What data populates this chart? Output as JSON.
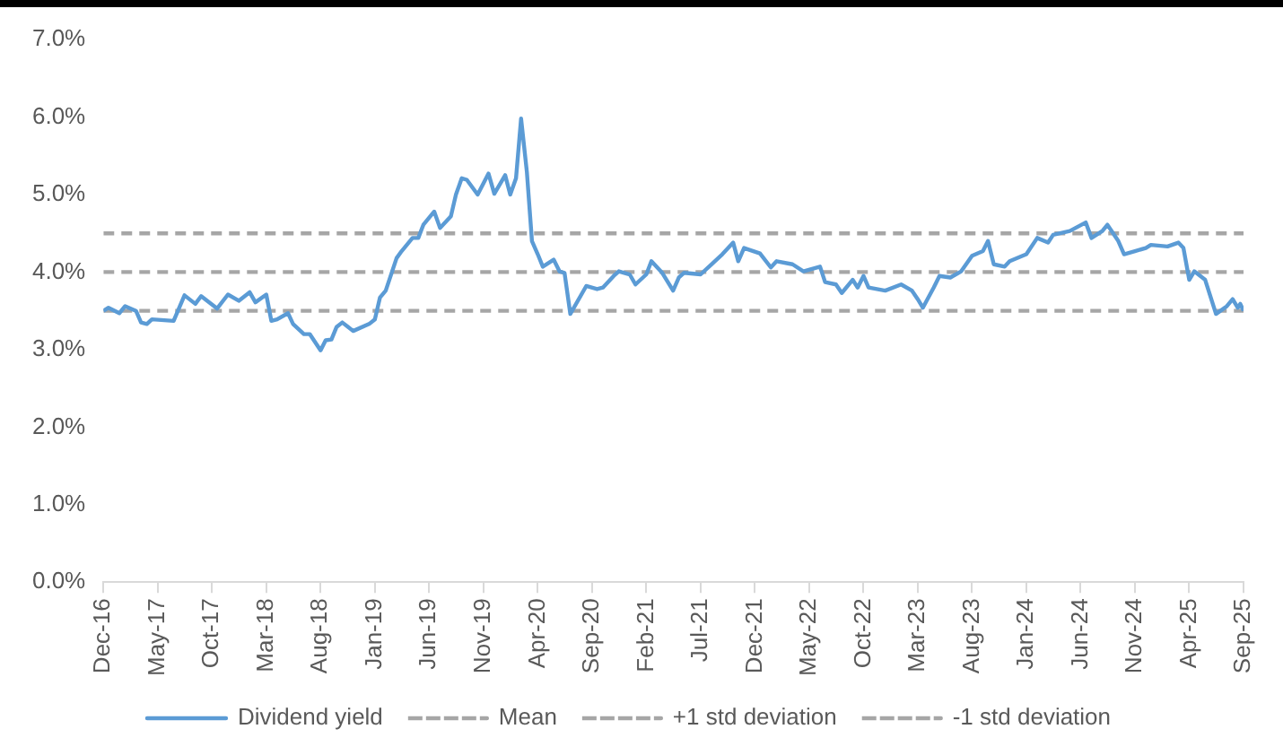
{
  "chart_data": {
    "type": "line",
    "legend": "bottom",
    "grid": false,
    "marker": "none",
    "xlim": [
      "2016-12",
      "2025-09"
    ],
    "xticks": [
      {
        "value": "2016-12",
        "label": "Dec-16"
      },
      {
        "value": "2017-05",
        "label": "May-17"
      },
      {
        "value": "2017-10",
        "label": "Oct-17"
      },
      {
        "value": "2018-03",
        "label": "Mar-18"
      },
      {
        "value": "2018-08",
        "label": "Aug-18"
      },
      {
        "value": "2019-01",
        "label": "Jan-19"
      },
      {
        "value": "2019-06",
        "label": "Jun-19"
      },
      {
        "value": "2019-11",
        "label": "Nov-19"
      },
      {
        "value": "2020-04",
        "label": "Apr-20"
      },
      {
        "value": "2020-09",
        "label": "Sep-20"
      },
      {
        "value": "2021-02",
        "label": "Feb-21"
      },
      {
        "value": "2021-07",
        "label": "Jul-21"
      },
      {
        "value": "2021-12",
        "label": "Dec-21"
      },
      {
        "value": "2022-05",
        "label": "May-22"
      },
      {
        "value": "2022-10",
        "label": "Oct-22"
      },
      {
        "value": "2023-03",
        "label": "Mar-23"
      },
      {
        "value": "2023-08",
        "label": "Aug-23"
      },
      {
        "value": "2024-01",
        "label": "Jan-24"
      },
      {
        "value": "2024-06",
        "label": "Jun-24"
      },
      {
        "value": "2024-11",
        "label": "Nov-24"
      },
      {
        "value": "2025-04",
        "label": "Apr-25"
      },
      {
        "value": "2025-09",
        "label": "Sep-25"
      }
    ],
    "ylim": [
      0,
      7
    ],
    "yticks": [
      {
        "value": 0,
        "label": "0.0%"
      },
      {
        "value": 1,
        "label": "1.0%"
      },
      {
        "value": 2,
        "label": "2.0%"
      },
      {
        "value": 3,
        "label": "3.0%"
      },
      {
        "value": 4,
        "label": "4.0%"
      },
      {
        "value": 5,
        "label": "5.0%"
      },
      {
        "value": 6,
        "label": "6.0%"
      },
      {
        "value": 7,
        "label": "7.0%"
      }
    ],
    "series": [
      {
        "name": "Dividend yield",
        "color": "#5b9bd5",
        "line_style": "solid",
        "x": [
          "2016-12-01",
          "2016-12-15",
          "2017-01-15",
          "2017-02-01",
          "2017-03-01",
          "2017-03-15",
          "2017-04-01",
          "2017-04-15",
          "2017-06-15",
          "2017-07-15",
          "2017-08-15",
          "2017-09-01",
          "2017-10-15",
          "2017-11-15",
          "2017-12-15",
          "2018-01-15",
          "2018-02-01",
          "2018-03-01",
          "2018-03-15",
          "2018-04-01",
          "2018-05-01",
          "2018-05-15",
          "2018-06-15",
          "2018-07-01",
          "2018-08-01",
          "2018-08-15",
          "2018-09-01",
          "2018-09-15",
          "2018-10-01",
          "2018-10-15",
          "2018-11-01",
          "2018-12-15",
          "2019-01-01",
          "2019-01-15",
          "2019-02-01",
          "2019-03-01",
          "2019-03-15",
          "2019-04-15",
          "2019-05-01",
          "2019-05-15",
          "2019-06-15",
          "2019-07-01",
          "2019-08-01",
          "2019-08-15",
          "2019-09-01",
          "2019-09-15",
          "2019-10-15",
          "2019-11-15",
          "2019-12-01",
          "2020-01-01",
          "2020-01-15",
          "2020-02-01",
          "2020-02-15",
          "2020-03-01",
          "2020-03-15",
          "2020-04-01",
          "2020-04-15",
          "2020-05-15",
          "2020-06-01",
          "2020-06-15",
          "2020-07-01",
          "2020-08-15",
          "2020-09-15",
          "2020-10-01",
          "2020-11-01",
          "2020-11-15",
          "2020-12-15",
          "2021-01-01",
          "2021-02-01",
          "2021-02-15",
          "2021-03-15",
          "2021-04-15",
          "2021-05-01",
          "2021-05-15",
          "2021-07-01",
          "2021-08-01",
          "2021-09-01",
          "2021-10-01",
          "2021-10-15",
          "2021-11-01",
          "2021-12-15",
          "2022-01-15",
          "2022-02-01",
          "2022-03-15",
          "2022-04-15",
          "2022-06-01",
          "2022-06-15",
          "2022-07-15",
          "2022-08-01",
          "2022-09-01",
          "2022-09-15",
          "2022-10-01",
          "2022-10-15",
          "2022-12-01",
          "2023-01-15",
          "2023-02-15",
          "2023-03-01",
          "2023-03-15",
          "2023-04-15",
          "2023-05-01",
          "2023-06-01",
          "2023-07-01",
          "2023-08-01",
          "2023-09-01",
          "2023-09-15",
          "2023-10-01",
          "2023-11-01",
          "2023-11-15",
          "2024-01-01",
          "2024-02-01",
          "2024-03-01",
          "2024-03-15",
          "2024-05-01",
          "2024-06-15",
          "2024-07-01",
          "2024-08-01",
          "2024-08-15",
          "2024-09-15",
          "2024-10-01",
          "2024-11-01",
          "2024-12-01",
          "2024-12-15",
          "2025-02-01",
          "2025-03-01",
          "2025-03-15",
          "2025-04-01",
          "2025-04-15",
          "2025-05-15",
          "2025-06-15",
          "2025-07-15",
          "2025-08-01",
          "2025-08-15",
          "2025-08-22",
          "2025-09-01"
        ],
        "values": [
          3.5,
          3.54,
          3.47,
          3.56,
          3.5,
          3.35,
          3.33,
          3.39,
          3.37,
          3.7,
          3.59,
          3.69,
          3.53,
          3.71,
          3.63,
          3.74,
          3.61,
          3.71,
          3.37,
          3.39,
          3.47,
          3.33,
          3.2,
          3.2,
          2.99,
          3.12,
          3.13,
          3.29,
          3.35,
          3.3,
          3.24,
          3.33,
          3.39,
          3.67,
          3.76,
          4.18,
          4.27,
          4.44,
          4.44,
          4.61,
          4.78,
          4.57,
          4.72,
          5.0,
          5.21,
          5.19,
          5.0,
          5.27,
          5.01,
          5.25,
          5.0,
          5.21,
          5.98,
          5.29,
          4.4,
          4.23,
          4.07,
          4.16,
          4.01,
          3.99,
          3.46,
          3.82,
          3.78,
          3.8,
          3.95,
          4.01,
          3.97,
          3.84,
          3.97,
          4.14,
          3.99,
          3.76,
          3.93,
          3.99,
          3.97,
          4.1,
          4.23,
          4.38,
          4.14,
          4.31,
          4.24,
          4.06,
          4.14,
          4.1,
          4.01,
          4.07,
          3.87,
          3.84,
          3.73,
          3.9,
          3.8,
          3.95,
          3.8,
          3.76,
          3.84,
          3.76,
          3.65,
          3.54,
          3.8,
          3.95,
          3.93,
          4.01,
          4.21,
          4.27,
          4.4,
          4.1,
          4.07,
          4.14,
          4.23,
          4.44,
          4.38,
          4.48,
          4.53,
          4.64,
          4.44,
          4.53,
          4.61,
          4.4,
          4.23,
          4.27,
          4.31,
          4.35,
          4.33,
          4.38,
          4.31,
          3.9,
          4.01,
          3.9,
          3.46,
          3.56,
          3.65,
          3.54,
          3.59,
          3.5
        ]
      },
      {
        "name": "Mean",
        "color": "#a6a6a6",
        "line_style": "dashed",
        "x": [
          "2016-12",
          "2025-09"
        ],
        "values": [
          4.0,
          4.0
        ]
      },
      {
        "name": "+1 std deviation",
        "color": "#a6a6a6",
        "line_style": "dashed",
        "x": [
          "2016-12",
          "2025-09"
        ],
        "values": [
          4.5,
          4.5
        ]
      },
      {
        "name": "-1 std deviation",
        "color": "#a6a6a6",
        "line_style": "dashed",
        "x": [
          "2016-12",
          "2025-09"
        ],
        "values": [
          3.5,
          3.5
        ]
      }
    ]
  }
}
